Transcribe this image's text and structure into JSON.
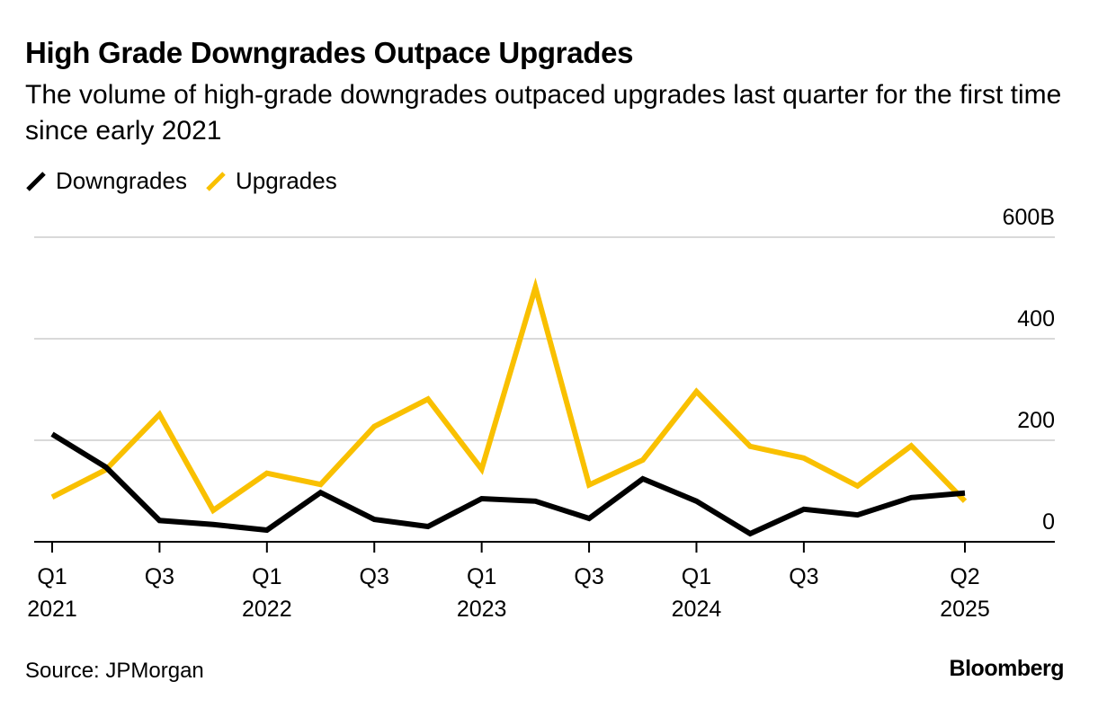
{
  "header": {
    "title": "High Grade Downgrades Outpace Upgrades",
    "subtitle": "The volume of high-grade downgrades outpaced upgrades last quarter for the first time since early 2021"
  },
  "legend": [
    {
      "name": "Downgrades",
      "color": "#000000"
    },
    {
      "name": "Upgrades",
      "color": "#F9C000"
    }
  ],
  "footer": {
    "source": "Source: JPMorgan",
    "brand": "Bloomberg"
  },
  "chart_data": {
    "type": "line",
    "title": "High Grade Downgrades Outpace Upgrades",
    "subtitle": "The volume of high-grade downgrades outpaced upgrades last quarter for the first time since early 2021",
    "xlabel": "",
    "ylabel": "",
    "x": [
      "Q1 2021",
      "Q2 2021",
      "Q3 2021",
      "Q4 2021",
      "Q1 2022",
      "Q2 2022",
      "Q3 2022",
      "Q4 2022",
      "Q1 2023",
      "Q2 2023",
      "Q3 2023",
      "Q4 2023",
      "Q1 2024",
      "Q2 2024",
      "Q3 2024",
      "Q4 2024",
      "Q1 2025",
      "Q2 2025"
    ],
    "series": [
      {
        "name": "Downgrades",
        "color": "#000000",
        "values": [
          212,
          147,
          42,
          34,
          23,
          97,
          44,
          30,
          85,
          80,
          46,
          124,
          80,
          16,
          64,
          53,
          87,
          96
        ]
      },
      {
        "name": "Upgrades",
        "color": "#F9C000",
        "values": [
          88,
          142,
          251,
          62,
          135,
          113,
          227,
          281,
          143,
          501,
          112,
          161,
          296,
          188,
          165,
          110,
          189,
          80
        ]
      }
    ],
    "ylim": [
      0,
      600
    ],
    "y_ticks": [
      {
        "value": 0,
        "label": "0"
      },
      {
        "value": 200,
        "label": "200"
      },
      {
        "value": 400,
        "label": "400"
      },
      {
        "value": 600,
        "label": "600B"
      }
    ],
    "x_ticks": [
      {
        "index": 0,
        "line1": "Q1",
        "line2": "2021"
      },
      {
        "index": 2,
        "line1": "Q3",
        "line2": ""
      },
      {
        "index": 4,
        "line1": "Q1",
        "line2": "2022"
      },
      {
        "index": 6,
        "line1": "Q3",
        "line2": ""
      },
      {
        "index": 8,
        "line1": "Q1",
        "line2": "2023"
      },
      {
        "index": 10,
        "line1": "Q3",
        "line2": ""
      },
      {
        "index": 12,
        "line1": "Q1",
        "line2": "2024"
      },
      {
        "index": 14,
        "line1": "Q3",
        "line2": ""
      },
      {
        "index": 17,
        "line1": "Q2",
        "line2": "2025"
      }
    ],
    "grid": true,
    "legend_position": "top-left",
    "y_axis_side": "right",
    "units": "USD billions"
  }
}
